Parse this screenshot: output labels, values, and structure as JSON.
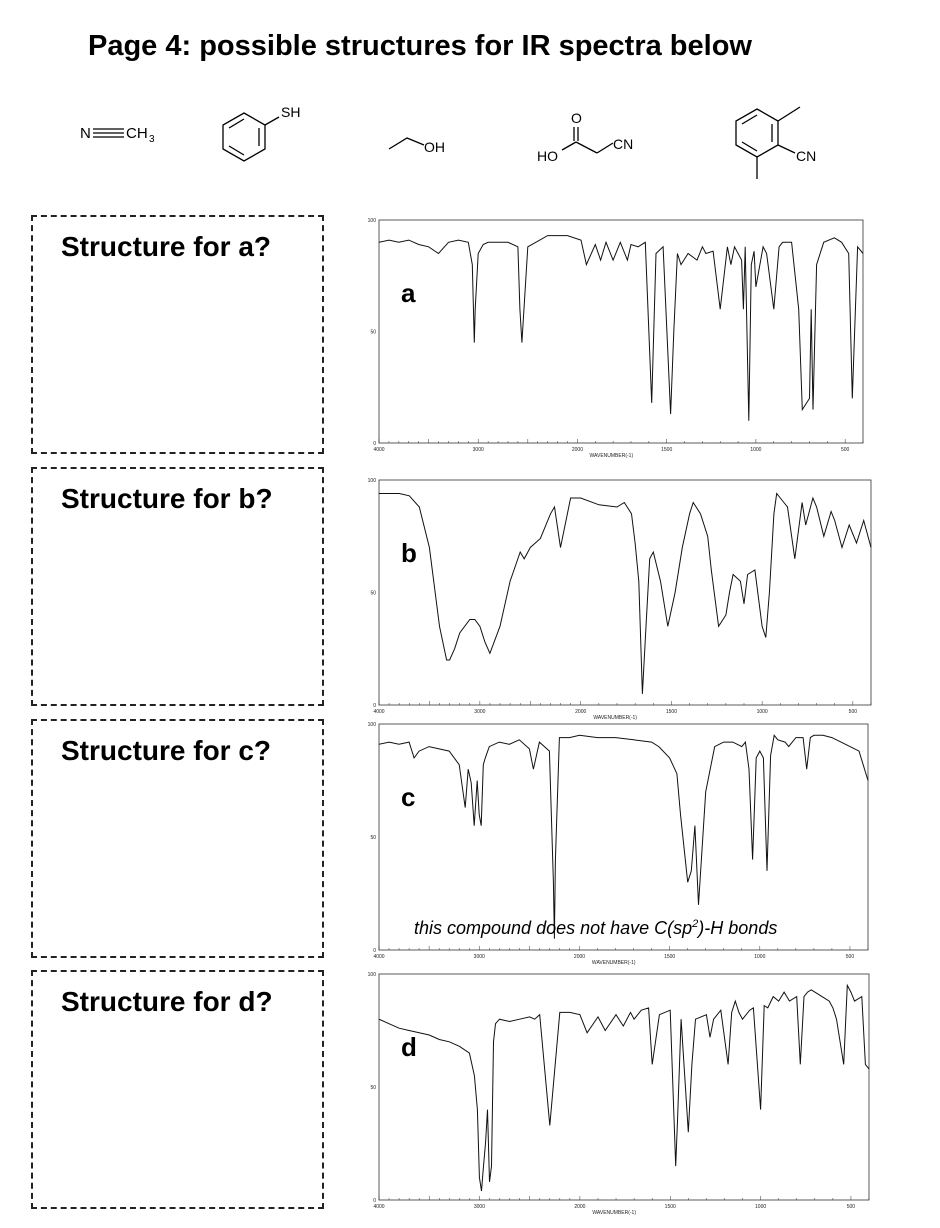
{
  "page": {
    "title": "Page 4: possible structures for IR spectra below"
  },
  "structures": [
    {
      "name": "acetonitrile",
      "atom_labels": [
        "N",
        "CH",
        "3"
      ]
    },
    {
      "name": "thiophenol",
      "atom_labels": [
        "SH"
      ]
    },
    {
      "name": "ethanol",
      "atom_labels": [
        "OH"
      ]
    },
    {
      "name": "cyanoacetic-acid",
      "atom_labels": [
        "O",
        "HO",
        "CN"
      ]
    },
    {
      "name": "dimethylbenzonitrile",
      "atom_labels": [
        "CN"
      ]
    }
  ],
  "answers": [
    {
      "id": "a",
      "prompt": "Structure for a?"
    },
    {
      "id": "b",
      "prompt": "Structure for b?"
    },
    {
      "id": "c",
      "prompt": "Structure for c?"
    },
    {
      "id": "d",
      "prompt": "Structure for d?"
    }
  ],
  "note": {
    "before": "this compound does not have C(sp",
    "sup": "2",
    "after": ")-H bonds"
  },
  "axis": {
    "x_ticks": [
      "4000",
      "3000",
      "2000",
      "1500",
      "1000",
      "500"
    ],
    "x_label": "WAVENUMBER(-1)",
    "y_ticks": [
      "100",
      "50",
      "0"
    ]
  },
  "chart_data": [
    {
      "type": "line",
      "label": "a",
      "xlim": [
        4000,
        400
      ],
      "ylim": [
        0,
        100
      ],
      "x": [
        4000,
        3900,
        3800,
        3700,
        3600,
        3500,
        3400,
        3300,
        3200,
        3100,
        3060,
        3040,
        3030,
        3000,
        2950,
        2900,
        2800,
        2700,
        2600,
        2580,
        2560,
        2500,
        2300,
        2100,
        1980,
        1950,
        1900,
        1870,
        1840,
        1800,
        1760,
        1720,
        1700,
        1660,
        1620,
        1584,
        1560,
        1520,
        1478,
        1460,
        1440,
        1420,
        1380,
        1330,
        1300,
        1280,
        1240,
        1200,
        1160,
        1140,
        1120,
        1100,
        1080,
        1070,
        1060,
        1040,
        1026,
        1010,
        1000,
        960,
        940,
        900,
        870,
        850,
        800,
        760,
        740,
        700,
        690,
        680,
        660,
        620,
        560,
        520,
        480,
        460,
        430,
        400
      ],
      "y": [
        90,
        91,
        90,
        91,
        89,
        88,
        85,
        90,
        91,
        90,
        80,
        45,
        60,
        85,
        89,
        90,
        90,
        90,
        88,
        60,
        45,
        88,
        93,
        93,
        91,
        80,
        89,
        82,
        90,
        82,
        90,
        82,
        89,
        88,
        90,
        18,
        85,
        88,
        13,
        50,
        85,
        80,
        85,
        82,
        88,
        85,
        86,
        60,
        88,
        80,
        88,
        85,
        82,
        60,
        88,
        10,
        80,
        86,
        70,
        88,
        85,
        60,
        88,
        90,
        90,
        60,
        15,
        20,
        60,
        15,
        80,
        90,
        92,
        90,
        85,
        20,
        88,
        85
      ]
    },
    {
      "type": "line",
      "label": "b",
      "xlim": [
        4000,
        400
      ],
      "ylim": [
        0,
        100
      ],
      "x": [
        4000,
        3900,
        3800,
        3700,
        3600,
        3500,
        3400,
        3330,
        3300,
        3250,
        3200,
        3100,
        3050,
        3000,
        2950,
        2900,
        2800,
        2700,
        2600,
        2560,
        2500,
        2400,
        2300,
        2260,
        2200,
        2100,
        2000,
        1900,
        1800,
        1760,
        1720,
        1700,
        1680,
        1660,
        1640,
        1620,
        1600,
        1560,
        1520,
        1480,
        1440,
        1400,
        1380,
        1340,
        1300,
        1280,
        1240,
        1200,
        1180,
        1160,
        1120,
        1100,
        1080,
        1040,
        1000,
        980,
        960,
        935,
        920,
        900,
        880,
        860,
        820,
        780,
        760,
        720,
        700,
        660,
        620,
        600,
        560,
        520,
        480,
        440,
        400
      ],
      "y": [
        94,
        94,
        94,
        93,
        88,
        70,
        35,
        20,
        20,
        25,
        32,
        38,
        38,
        35,
        28,
        23,
        35,
        55,
        68,
        65,
        70,
        74,
        85,
        88,
        70,
        92,
        92,
        89,
        88,
        90,
        85,
        72,
        55,
        5,
        35,
        65,
        68,
        55,
        35,
        50,
        70,
        85,
        90,
        85,
        75,
        60,
        35,
        40,
        50,
        58,
        55,
        45,
        58,
        60,
        35,
        30,
        50,
        85,
        94,
        92,
        90,
        88,
        65,
        90,
        80,
        92,
        88,
        75,
        86,
        82,
        70,
        80,
        72,
        82,
        70
      ]
    },
    {
      "type": "line",
      "label": "c",
      "xlim": [
        4000,
        400
      ],
      "ylim": [
        0,
        100
      ],
      "x": [
        4000,
        3900,
        3800,
        3700,
        3650,
        3600,
        3500,
        3300,
        3200,
        3140,
        3110,
        3080,
        3050,
        3020,
        3000,
        2980,
        2960,
        2940,
        2900,
        2800,
        2700,
        2600,
        2500,
        2460,
        2400,
        2300,
        2260,
        2250,
        2240,
        2200,
        2100,
        2000,
        1900,
        1800,
        1700,
        1600,
        1560,
        1500,
        1460,
        1440,
        1420,
        1400,
        1380,
        1360,
        1340,
        1300,
        1250,
        1200,
        1150,
        1100,
        1080,
        1060,
        1040,
        1020,
        1000,
        980,
        960,
        940,
        920,
        900,
        860,
        840,
        800,
        760,
        740,
        720,
        700,
        650,
        600,
        550,
        500,
        450,
        400
      ],
      "y": [
        91,
        92,
        91,
        92,
        85,
        88,
        90,
        88,
        82,
        63,
        80,
        74,
        55,
        75,
        60,
        55,
        82,
        85,
        90,
        92,
        91,
        93,
        89,
        80,
        92,
        88,
        30,
        5,
        40,
        94,
        94,
        95,
        94,
        94,
        93,
        92,
        90,
        85,
        78,
        60,
        45,
        30,
        35,
        55,
        20,
        70,
        90,
        92,
        92,
        90,
        92,
        80,
        40,
        85,
        88,
        85,
        35,
        86,
        95,
        93,
        92,
        90,
        94,
        94,
        80,
        94,
        95,
        95,
        94,
        92,
        90,
        88,
        75
      ]
    },
    {
      "type": "line",
      "label": "d",
      "xlim": [
        4000,
        400
      ],
      "ylim": [
        0,
        100
      ],
      "x": [
        4000,
        3900,
        3800,
        3700,
        3600,
        3500,
        3400,
        3300,
        3200,
        3100,
        3050,
        3020,
        3000,
        2980,
        2960,
        2940,
        2920,
        2900,
        2880,
        2860,
        2840,
        2800,
        2700,
        2600,
        2500,
        2450,
        2400,
        2300,
        2200,
        2100,
        2000,
        1960,
        1900,
        1860,
        1800,
        1760,
        1720,
        1700,
        1660,
        1620,
        1600,
        1560,
        1500,
        1470,
        1460,
        1440,
        1400,
        1380,
        1360,
        1300,
        1280,
        1260,
        1220,
        1180,
        1160,
        1140,
        1120,
        1100,
        1060,
        1040,
        1000,
        980,
        960,
        930,
        900,
        870,
        840,
        800,
        780,
        760,
        740,
        720,
        700,
        660,
        620,
        600,
        580,
        540,
        520,
        500,
        480,
        440,
        420,
        400
      ],
      "y": [
        80,
        78,
        76,
        75,
        74,
        73,
        71,
        70,
        68,
        65,
        55,
        40,
        10,
        4,
        15,
        25,
        40,
        8,
        15,
        70,
        78,
        80,
        79,
        80,
        81,
        80,
        82,
        33,
        83,
        83,
        82,
        74,
        81,
        75,
        82,
        77,
        83,
        80,
        84,
        85,
        60,
        82,
        84,
        15,
        35,
        80,
        30,
        60,
        80,
        82,
        72,
        80,
        84,
        60,
        83,
        88,
        83,
        80,
        84,
        85,
        40,
        86,
        85,
        90,
        88,
        92,
        88,
        90,
        60,
        90,
        92,
        93,
        92,
        90,
        88,
        85,
        80,
        60,
        95,
        92,
        88,
        90,
        60,
        58
      ]
    }
  ]
}
